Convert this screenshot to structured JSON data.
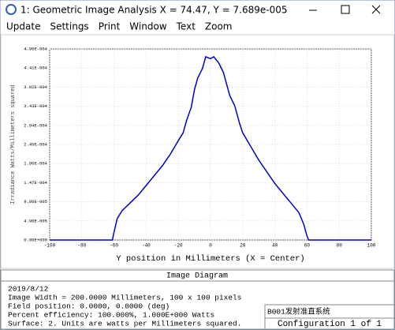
{
  "window": {
    "title": "1: Geometric Image Analysis X = 74.47, Y = 7.689e-005",
    "menu": [
      "Update",
      "Settings",
      "Print",
      "Window",
      "Text",
      "Zoom"
    ]
  },
  "chart_data": {
    "type": "line",
    "xlabel": "Y position in Millimeters (X = Center)",
    "ylabel": "Irradiance Watts/Millimeters squared",
    "x": [
      -100,
      -61,
      -60,
      -58,
      -55,
      -50,
      -45,
      -40,
      -35,
      -30,
      -25,
      -20,
      -17,
      -15,
      -12,
      -10,
      -8,
      -5,
      -3,
      0,
      2,
      5,
      8,
      10,
      12,
      15,
      18,
      20,
      25,
      30,
      35,
      40,
      45,
      50,
      55,
      58,
      60,
      61,
      100
    ],
    "series": [
      {
        "color": "#0000c8",
        "values": [
          0,
          0,
          2e-05,
          5.5e-05,
          7.5e-05,
          9.5e-05,
          0.000115,
          0.00014,
          0.000165,
          0.00019,
          0.00022,
          0.000255,
          0.000275,
          0.000305,
          0.00034,
          0.000385,
          0.000415,
          0.00044,
          0.00047,
          0.000465,
          0.00047,
          0.000455,
          0.00043,
          0.0004,
          0.00037,
          0.000345,
          0.0003,
          0.000275,
          0.00024,
          0.000205,
          0.000175,
          0.000145,
          0.00012,
          9.5e-05,
          7e-05,
          4e-05,
          1e-05,
          0,
          0
        ]
      }
    ],
    "xlim": [
      -100,
      100
    ],
    "xticks": [
      -100,
      -80,
      -60,
      -40,
      -20,
      0,
      20,
      40,
      60,
      80,
      100
    ],
    "ylim": [
      0,
      0.00049
    ],
    "yticks": [
      {
        "value": 0,
        "label": "0.00E+000"
      },
      {
        "value": 4.9e-05,
        "label": "4.90E-005"
      },
      {
        "value": 9.8e-05,
        "label": "9.80E-005"
      },
      {
        "value": 0.000147,
        "label": "1.47E-004"
      },
      {
        "value": 0.000196,
        "label": "1.96E-004"
      },
      {
        "value": 0.000245,
        "label": "2.45E-004"
      },
      {
        "value": 0.000294,
        "label": "2.94E-004"
      },
      {
        "value": 0.000343,
        "label": "3.43E-004"
      },
      {
        "value": 0.000392,
        "label": "3.92E-004"
      },
      {
        "value": 0.000441,
        "label": "4.41E-004"
      },
      {
        "value": 0.00049,
        "label": "4.90E-004"
      }
    ]
  },
  "footer": {
    "heading": "Image Diagram",
    "lines": [
      "2019/8/12",
      "Image Width = 200.0000 Millimeters, 100 x 100 pixels",
      "Field position: 0.0000, 0.0000 (deg)",
      "Percent efficiency: 100.000%, 1.000E+000 Watts",
      "Surface: 2. Units are watts per Millimeters squared."
    ],
    "file": "B001发射准直系统",
    "config": "Configuration 1 of 1"
  }
}
